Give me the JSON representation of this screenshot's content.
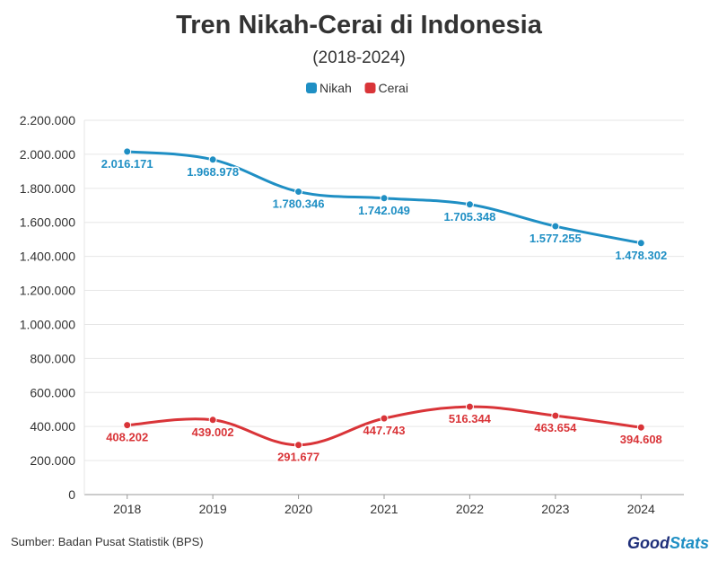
{
  "chart_data": {
    "type": "line",
    "title": "Tren Nikah-Cerai di Indonesia",
    "subtitle": "(2018-2024)",
    "categories": [
      "2018",
      "2019",
      "2020",
      "2021",
      "2022",
      "2023",
      "2024"
    ],
    "series": [
      {
        "name": "Nikah",
        "color": "#1f8fc4",
        "values": [
          2016171,
          1968978,
          1780346,
          1742049,
          1705348,
          1577255,
          1478302
        ],
        "labels": [
          "2.016.171",
          "1.968.978",
          "1.780.346",
          "1.742.049",
          "1.705.348",
          "1.577.255",
          "1.478.302"
        ]
      },
      {
        "name": "Cerai",
        "color": "#d93438",
        "values": [
          408202,
          439002,
          291677,
          447743,
          516344,
          463654,
          394608
        ],
        "labels": [
          "408.202",
          "439.002",
          "291.677",
          "447.743",
          "516.344",
          "463.654",
          "394.608"
        ]
      }
    ],
    "ylim": [
      0,
      2200000
    ],
    "yticks": [
      0,
      200000,
      400000,
      600000,
      800000,
      1000000,
      1200000,
      1400000,
      1600000,
      1800000,
      2000000,
      2200000
    ],
    "ytick_labels": [
      "0",
      "200.000",
      "400.000",
      "600.000",
      "800.000",
      "1.000.000",
      "1.200.000",
      "1.400.000",
      "1.600.000",
      "1.800.000",
      "2.000.000",
      "2.200.000"
    ],
    "grid": true,
    "legend": "top-center",
    "source": "Sumber: Badan Pusat Statistik (BPS)"
  },
  "brand": {
    "part1": "Good",
    "part2": "Stats",
    "color1": "#1f2f7a",
    "color2": "#1f8fc4"
  }
}
